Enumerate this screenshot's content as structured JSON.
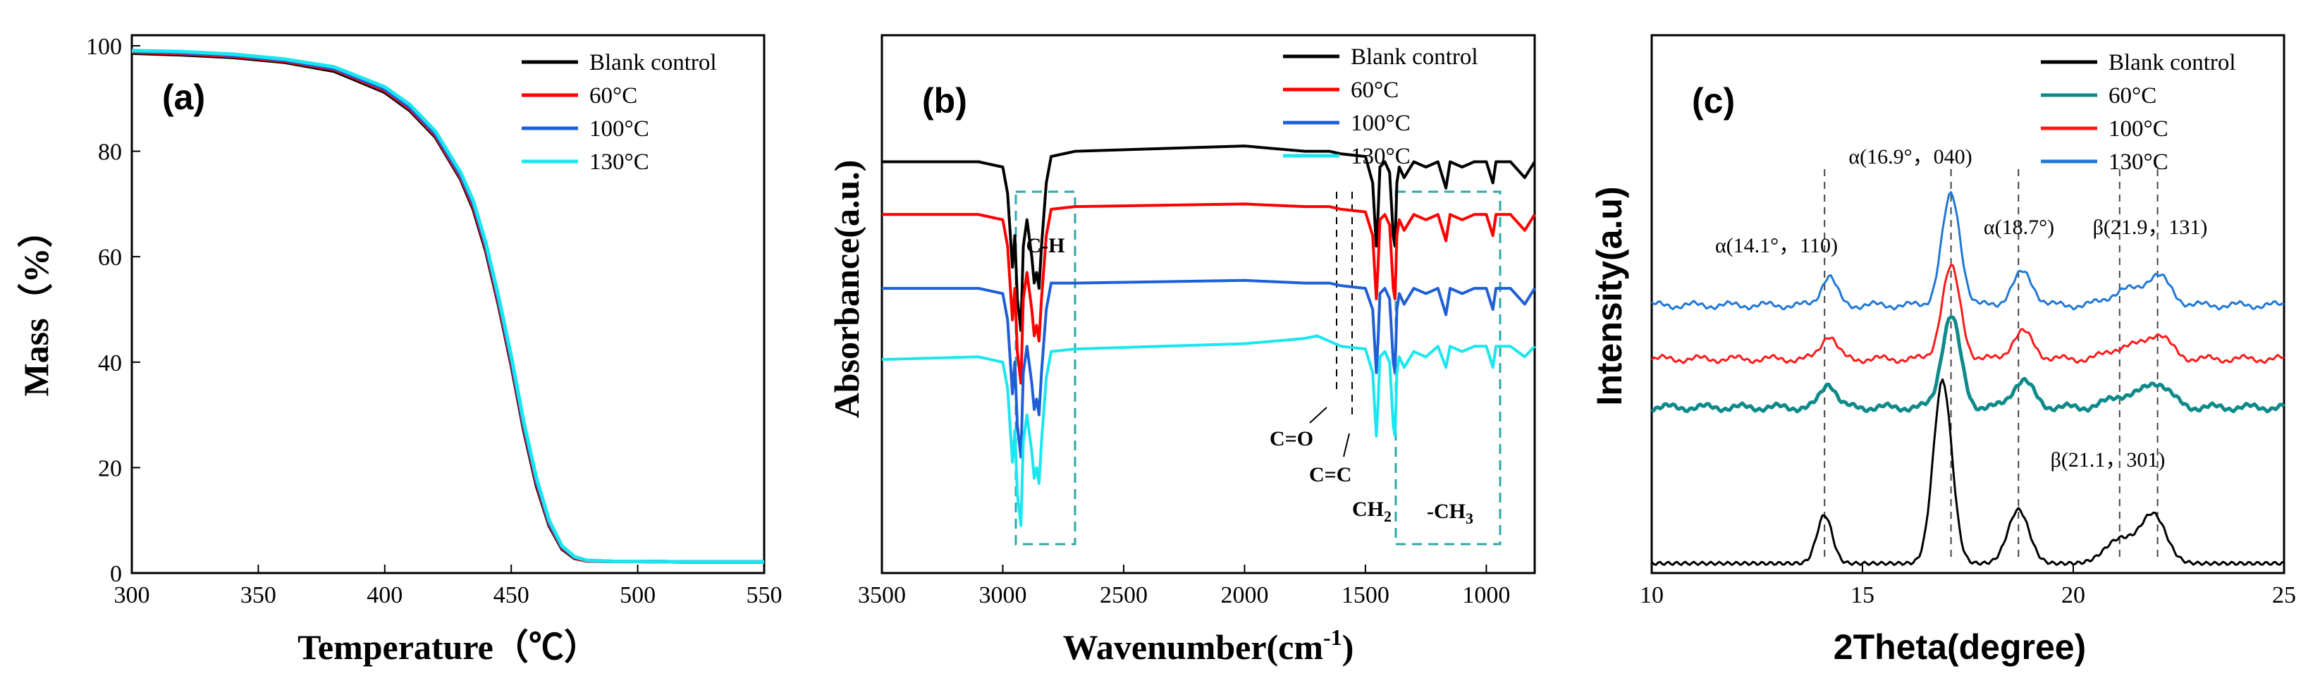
{
  "chart_data": [
    {
      "type": "line",
      "panel_label": "(a)",
      "title": "",
      "xlabel": "Temperature（℃）",
      "ylabel": "Mass（%）",
      "xlim": [
        300,
        550
      ],
      "ylim": [
        0,
        102
      ],
      "xticks": [
        300,
        350,
        400,
        450,
        500,
        550
      ],
      "yticks": [
        0,
        20,
        40,
        60,
        80,
        100
      ],
      "legend": "top-right",
      "series": [
        {
          "name": "Blank control",
          "color": "#000000",
          "x": [
            300,
            320,
            340,
            360,
            380,
            400,
            410,
            420,
            430,
            435,
            440,
            445,
            450,
            455,
            460,
            465,
            470,
            475,
            480,
            490,
            500,
            520,
            550
          ],
          "y": [
            98.6,
            98.3,
            97.8,
            96.9,
            95.2,
            91.2,
            87.7,
            82.7,
            74.7,
            69.0,
            61.0,
            50.8,
            39.5,
            27.0,
            16.5,
            9.0,
            4.6,
            2.8,
            2.3,
            2.2,
            2.2,
            2.1,
            2.1
          ]
        },
        {
          "name": "60°C",
          "color": "#ff0000",
          "x": [
            300,
            320,
            340,
            360,
            380,
            400,
            410,
            420,
            430,
            435,
            440,
            445,
            450,
            455,
            460,
            465,
            470,
            475,
            480,
            490,
            500,
            520,
            550
          ],
          "y": [
            98.8,
            98.5,
            98.0,
            97.1,
            95.5,
            91.5,
            88.0,
            83.0,
            75.0,
            69.5,
            61.5,
            51.2,
            40.0,
            27.5,
            17.0,
            9.3,
            4.8,
            2.9,
            2.3,
            2.2,
            2.2,
            2.1,
            2.1
          ]
        },
        {
          "name": "100°C",
          "color": "#1f5fd6",
          "x": [
            300,
            320,
            340,
            360,
            380,
            400,
            410,
            420,
            430,
            435,
            440,
            445,
            450,
            455,
            460,
            465,
            470,
            475,
            480,
            490,
            500,
            520,
            550
          ],
          "y": [
            99.0,
            98.7,
            98.2,
            97.3,
            95.7,
            91.8,
            88.3,
            83.3,
            75.4,
            70.0,
            62.0,
            51.8,
            40.5,
            28.0,
            17.5,
            9.6,
            5.0,
            3.0,
            2.4,
            2.2,
            2.2,
            2.1,
            2.1
          ]
        },
        {
          "name": "130°C",
          "color": "#1ae6f0",
          "x": [
            300,
            320,
            340,
            360,
            380,
            400,
            410,
            420,
            430,
            435,
            440,
            445,
            450,
            455,
            460,
            465,
            470,
            475,
            480,
            490,
            500,
            520,
            550
          ],
          "y": [
            99.1,
            98.9,
            98.4,
            97.5,
            96.0,
            92.2,
            88.8,
            83.8,
            76.0,
            70.6,
            62.6,
            52.4,
            41.2,
            28.6,
            18.0,
            10.0,
            5.2,
            3.1,
            2.4,
            2.2,
            2.2,
            2.1,
            2.1
          ]
        }
      ]
    },
    {
      "type": "line",
      "panel_label": "(b)",
      "title": "",
      "xlabel": "Wavenumber(cm",
      "xlabel_sup": "-1",
      "xlabel_end": ")",
      "ylabel": "Absorbance(a.u.)",
      "xlim": [
        3500,
        800
      ],
      "xticks": [
        3500,
        3000,
        2500,
        2000,
        1500,
        1000
      ],
      "legend": "top-right",
      "series": [
        {
          "name": "Blank control",
          "color": "#000000",
          "baseline": 6.6,
          "x": [
            3500,
            3100,
            3000,
            2980,
            2960,
            2950,
            2940,
            2925,
            2915,
            2900,
            2880,
            2870,
            2860,
            2850,
            2840,
            2820,
            2800,
            2700,
            2000,
            1750,
            1700,
            1650,
            1600,
            1500,
            1470,
            1460,
            1455,
            1448,
            1440,
            1420,
            1400,
            1390,
            1385,
            1378,
            1375,
            1370,
            1360,
            1340,
            1300,
            1250,
            1200,
            1167,
            1150,
            1100,
            1050,
            1000,
            973,
            960,
            900,
            841,
            800
          ],
          "y": [
            6.6,
            6.6,
            6.5,
            6.0,
            4.6,
            5.2,
            4.0,
            3.4,
            5.0,
            5.5,
            4.8,
            4.3,
            4.5,
            4.2,
            5.0,
            6.2,
            6.7,
            6.8,
            6.9,
            6.8,
            6.8,
            6.8,
            6.75,
            6.7,
            6.2,
            5.4,
            5.0,
            5.6,
            6.5,
            6.6,
            6.4,
            5.6,
            5.2,
            5.0,
            5.4,
            6.2,
            6.5,
            6.3,
            6.6,
            6.5,
            6.6,
            6.1,
            6.6,
            6.5,
            6.6,
            6.6,
            6.2,
            6.6,
            6.6,
            6.3,
            6.6
          ]
        },
        {
          "name": "60°C",
          "color": "#ff0000",
          "baseline": 5.6,
          "x": [
            3500,
            3100,
            3000,
            2980,
            2960,
            2950,
            2940,
            2925,
            2915,
            2900,
            2880,
            2870,
            2860,
            2850,
            2840,
            2820,
            2800,
            2700,
            2000,
            1750,
            1700,
            1650,
            1600,
            1500,
            1470,
            1460,
            1455,
            1448,
            1440,
            1420,
            1400,
            1390,
            1385,
            1378,
            1375,
            1370,
            1360,
            1340,
            1300,
            1250,
            1200,
            1167,
            1150,
            1100,
            1050,
            1000,
            973,
            960,
            900,
            841,
            800
          ],
          "y": [
            5.6,
            5.6,
            5.5,
            5.0,
            3.6,
            4.2,
            3.0,
            2.4,
            4.0,
            4.5,
            3.8,
            3.3,
            3.5,
            3.2,
            4.0,
            5.2,
            5.7,
            5.75,
            5.8,
            5.75,
            5.75,
            5.75,
            5.7,
            5.65,
            5.2,
            4.4,
            4.0,
            4.6,
            5.5,
            5.6,
            5.4,
            4.6,
            4.2,
            4.0,
            4.4,
            5.2,
            5.5,
            5.3,
            5.6,
            5.5,
            5.6,
            5.1,
            5.6,
            5.5,
            5.6,
            5.6,
            5.2,
            5.6,
            5.6,
            5.3,
            5.6
          ]
        },
        {
          "name": "100°C",
          "color": "#1f5fd6",
          "baseline": 4.2,
          "x": [
            3500,
            3100,
            3000,
            2980,
            2960,
            2950,
            2940,
            2925,
            2915,
            2900,
            2880,
            2870,
            2860,
            2850,
            2840,
            2820,
            2800,
            2700,
            2000,
            1750,
            1700,
            1650,
            1600,
            1500,
            1470,
            1460,
            1455,
            1448,
            1440,
            1420,
            1400,
            1390,
            1385,
            1378,
            1375,
            1370,
            1360,
            1340,
            1300,
            1250,
            1200,
            1167,
            1150,
            1100,
            1050,
            1000,
            973,
            960,
            900,
            841,
            800
          ],
          "y": [
            4.2,
            4.2,
            4.1,
            3.6,
            2.2,
            2.8,
            1.6,
            1.0,
            2.6,
            3.1,
            2.4,
            1.9,
            2.1,
            1.8,
            2.6,
            3.8,
            4.3,
            4.3,
            4.35,
            4.3,
            4.3,
            4.3,
            4.25,
            4.2,
            3.8,
            3.0,
            2.6,
            3.2,
            4.1,
            4.2,
            4.0,
            3.2,
            2.8,
            2.6,
            3.0,
            3.8,
            4.1,
            3.9,
            4.2,
            4.1,
            4.2,
            3.7,
            4.2,
            4.1,
            4.2,
            4.2,
            3.8,
            4.2,
            4.2,
            3.9,
            4.2
          ]
        },
        {
          "name": "130°C",
          "color": "#1ae6f0",
          "baseline": 3.0,
          "x": [
            3500,
            3100,
            3000,
            2980,
            2960,
            2950,
            2940,
            2925,
            2915,
            2900,
            2880,
            2870,
            2860,
            2850,
            2840,
            2820,
            2800,
            2700,
            2000,
            1750,
            1700,
            1650,
            1600,
            1500,
            1470,
            1460,
            1455,
            1448,
            1440,
            1420,
            1400,
            1390,
            1385,
            1378,
            1375,
            1370,
            1360,
            1340,
            1300,
            1250,
            1200,
            1167,
            1150,
            1100,
            1050,
            1000,
            973,
            960,
            900,
            841,
            800
          ],
          "y": [
            2.85,
            2.9,
            2.8,
            2.3,
            0.9,
            1.5,
            0.3,
            -0.3,
            1.3,
            1.8,
            1.1,
            0.6,
            0.8,
            0.5,
            1.3,
            2.5,
            3.0,
            3.05,
            3.15,
            3.25,
            3.3,
            3.2,
            3.1,
            3.05,
            2.6,
            1.8,
            1.4,
            2.0,
            2.9,
            3.0,
            2.8,
            2.0,
            1.6,
            1.4,
            1.8,
            2.6,
            2.9,
            2.7,
            3.0,
            2.9,
            3.1,
            2.7,
            3.1,
            3.0,
            3.1,
            3.1,
            2.7,
            3.1,
            3.1,
            2.9,
            3.1
          ]
        }
      ],
      "annotations": [
        {
          "text": "C-H",
          "at": 2930
        },
        {
          "text": "C=O",
          "at": 1715
        },
        {
          "text": "C=C",
          "at": 1640
        },
        {
          "text": "CH",
          "sub": "2",
          "at": 1455
        },
        {
          "text": "-CH",
          "sub": "3",
          "at": 1378
        }
      ]
    },
    {
      "type": "line",
      "panel_label": "(c)",
      "title": "",
      "xlabel": "2Theta(degree)",
      "ylabel": "Intensity(a.u)",
      "xlim": [
        10,
        25
      ],
      "xticks": [
        10,
        15,
        20,
        25
      ],
      "legend": "top-right",
      "series": [
        {
          "name": "Blank control",
          "color": "#000000",
          "offset": 0,
          "scale": 1.0
        },
        {
          "name": "60°C",
          "color": "#0e8a8a",
          "offset": 2.9,
          "scale": 0.5
        },
        {
          "name": "100°C",
          "color": "#ff1a1a",
          "offset": 3.8,
          "scale": 0.5
        },
        {
          "name": "130°C",
          "color": "#1f78d6",
          "offset": 4.8,
          "scale": 0.6
        }
      ],
      "peaks": [
        {
          "x": 14.1,
          "h": 0.9,
          "w": 0.18
        },
        {
          "x": 16.9,
          "h": 3.4,
          "w": 0.22
        },
        {
          "x": 18.7,
          "h": 1.0,
          "w": 0.25
        },
        {
          "x": 21.1,
          "h": 0.45,
          "w": 0.35
        },
        {
          "x": 21.9,
          "h": 0.9,
          "w": 0.3
        }
      ],
      "annotations": [
        {
          "text": "α(14.1°，110)",
          "at": 14.1
        },
        {
          "text": "α(16.9°，040)",
          "at": 16.9
        },
        {
          "text": "α(18.7°)",
          "at": 18.7
        },
        {
          "text": "β(21.9，131)",
          "at": 21.9
        },
        {
          "text": "β(21.1，301)",
          "at": 21.1
        }
      ]
    }
  ]
}
